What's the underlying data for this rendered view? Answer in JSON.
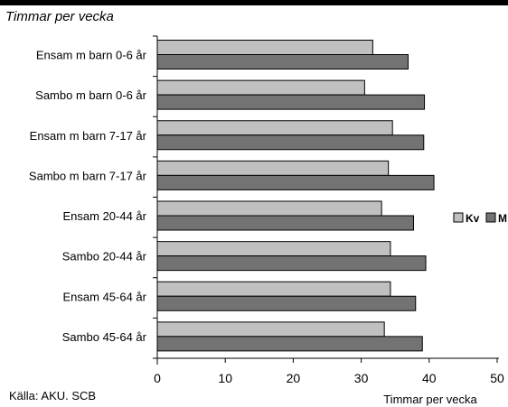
{
  "chart_data": {
    "type": "bar",
    "orientation": "horizontal",
    "title": "Timmar per vecka",
    "xlabel": "Timmar per vecka",
    "source": "Källa: AKU. SCB",
    "xlim": [
      0,
      50
    ],
    "xticks": [
      0,
      10,
      20,
      30,
      40,
      50
    ],
    "grid": false,
    "legend_position": "right",
    "categories": [
      "Ensam m barn 0-6 år",
      "Sambo m barn 0-6 år",
      "Ensam m barn 7-17 år",
      "Sambo m barn 7-17 år",
      "Ensam 20-44 år",
      "Sambo 20-44 år",
      "Ensam 45-64 år",
      "Sambo 45-64 år"
    ],
    "series": [
      {
        "name": "Kv",
        "color": "#c0c0c0",
        "values": [
          31.7,
          30.5,
          34.6,
          34.0,
          33.0,
          34.3,
          34.3,
          33.4
        ]
      },
      {
        "name": "M",
        "color": "#737373",
        "values": [
          36.9,
          39.3,
          39.2,
          40.7,
          37.7,
          39.5,
          38.0,
          39.0
        ]
      }
    ]
  }
}
